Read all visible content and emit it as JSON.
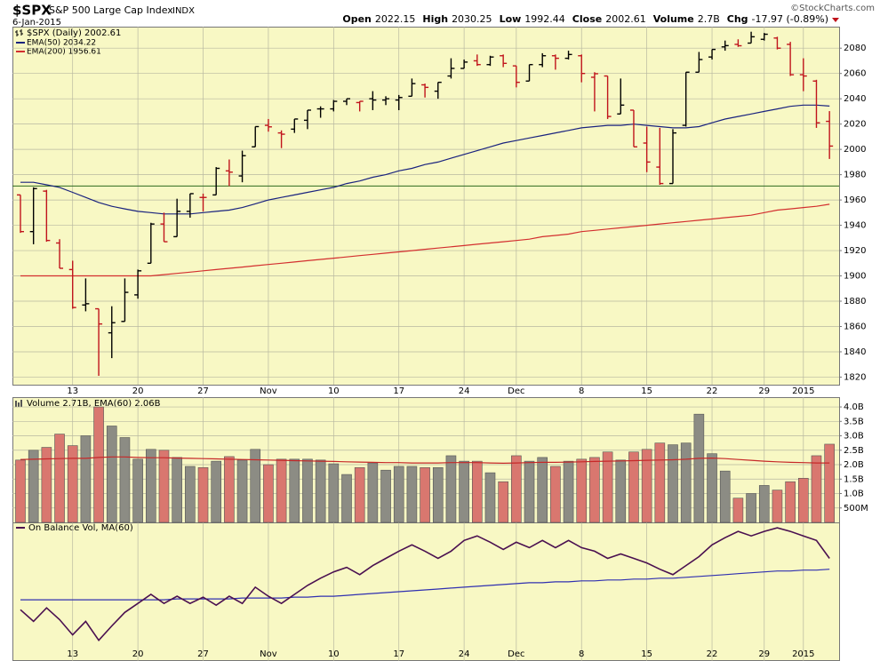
{
  "chart_data": [
    {
      "type": "ohlc",
      "title": "$SPX",
      "subtitle": "S&P 500 Large Cap Index",
      "exchange": "INDX",
      "date": "6-Jan-2015",
      "copyright": "©StockCharts.com",
      "quote": [
        {
          "label": "Open",
          "value": "2022.15"
        },
        {
          "label": "High",
          "value": "2030.25"
        },
        {
          "label": "Low",
          "value": "1992.44"
        },
        {
          "label": "Close",
          "value": "2002.61"
        },
        {
          "label": "Volume",
          "value": "2.7B"
        },
        {
          "label": "Chg",
          "value": "-17.97 (-0.89%)"
        }
      ],
      "name": "$SPX (Daily) 2002.61",
      "categories": [
        null,
        null,
        null,
        null,
        "13",
        null,
        null,
        null,
        null,
        "20",
        null,
        null,
        null,
        null,
        "27",
        null,
        null,
        null,
        null,
        "Nov",
        null,
        null,
        null,
        null,
        "10",
        null,
        null,
        null,
        null,
        "17",
        null,
        null,
        null,
        null,
        "24",
        null,
        null,
        null,
        "Dec",
        null,
        null,
        null,
        null,
        "8",
        null,
        null,
        null,
        null,
        "15",
        null,
        null,
        null,
        null,
        "22",
        null,
        null,
        null,
        "29",
        null,
        null,
        "2015",
        null,
        null
      ],
      "open": [
        1964,
        1935,
        1967,
        1926,
        1905,
        1877,
        1874,
        1855,
        1864,
        1885,
        1910,
        1941,
        1931,
        1951,
        1962,
        1964,
        1983,
        1979,
        2002,
        2019,
        2013,
        2016,
        2023,
        2032,
        2032,
        2038,
        2037,
        2040,
        2039,
        2039,
        2042,
        2051,
        2046,
        2058,
        2064,
        2070,
        2067,
        2074,
        2066,
        2054,
        2067,
        2074,
        2072,
        2074,
        2057,
        2058,
        2028,
        2031,
        2005,
        1986,
        1973,
        2019,
        2061,
        2073,
        2081,
        2083,
        2084,
        2087,
        2088,
        2083,
        2059,
        2054,
        2022.15
      ],
      "high": [
        1964,
        1970,
        1968,
        1929,
        1912,
        1898,
        1874,
        1876,
        1898,
        1905,
        1942,
        1950,
        1961,
        1965,
        1965,
        1986,
        1992,
        1999,
        2018,
        2024,
        2015,
        2024,
        2031,
        2034,
        2039,
        2040,
        2038,
        2046,
        2042,
        2043,
        2056,
        2052,
        2053,
        2072,
        2071,
        2075,
        2074,
        2075,
        2066,
        2067,
        2076,
        2075,
        2078,
        2075,
        2061,
        2058,
        2056,
        2031,
        2018,
        2017,
        2016,
        2061,
        2077,
        2079,
        2086,
        2087,
        2093,
        2092,
        2089,
        2085,
        2072,
        2055,
        2030.25
      ],
      "low": [
        1934,
        1925,
        1927,
        1906,
        1874,
        1872,
        1821,
        1835,
        1864,
        1882,
        1910,
        1927,
        1931,
        1946,
        1951,
        1964,
        1971,
        1974,
        2002,
        2014,
        2001,
        2013,
        2016,
        2025,
        2030,
        2035,
        2030,
        2031,
        2035,
        2031,
        2042,
        2041,
        2040,
        2056,
        2064,
        2066,
        2066,
        2065,
        2049,
        2054,
        2065,
        2063,
        2071,
        2053,
        2030,
        2024,
        2028,
        2002,
        1982,
        1972,
        1973,
        2018,
        2061,
        2071,
        2078,
        2081,
        2084,
        2086,
        2079,
        2058,
        2046,
        2017,
        1992.44
      ],
      "close": [
        1935,
        1969,
        1928,
        1906,
        1875,
        1878,
        1862,
        1863,
        1887,
        1904,
        1941,
        1927,
        1951,
        1965,
        1962,
        1985,
        1982,
        1995,
        2018,
        2017.8,
        2012,
        2024,
        2031,
        2032,
        2038,
        2040,
        2038,
        2039,
        2040,
        2041,
        2052,
        2049,
        2053,
        2064,
        2069,
        2067,
        2073,
        2068,
        2053,
        2067,
        2074,
        2072,
        2075,
        2060,
        2059.8,
        2026,
        2035,
        2002,
        1990,
        1973,
        2013,
        2061,
        2071,
        2079,
        2082,
        2081.9,
        2089,
        2091,
        2080,
        2059,
        2058,
        2021,
        2002.61
      ],
      "up_color": "#000000",
      "down_color": "#c0141c",
      "lines": [
        {
          "name": "EMA(50) 2034.22",
          "color": "#1a237e",
          "values": [
            1974,
            1974,
            1972,
            1970,
            1966,
            1962,
            1958,
            1955,
            1953,
            1951,
            1950,
            1949,
            1949,
            1949,
            1950,
            1951,
            1952,
            1954,
            1957,
            1960,
            1962,
            1964,
            1966,
            1968,
            1970,
            1973,
            1975,
            1978,
            1980,
            1983,
            1985,
            1988,
            1990,
            1993,
            1996,
            1999,
            2002,
            2005,
            2007,
            2009,
            2011,
            2013,
            2015,
            2017,
            2018,
            2019,
            2019,
            2020,
            2019,
            2018,
            2017,
            2017,
            2018,
            2021,
            2024,
            2026,
            2028,
            2030,
            2032,
            2034,
            2035,
            2035,
            2034.22
          ]
        },
        {
          "name": "EMA(200) 1956.61",
          "color": "#d32f2f",
          "values": [
            1900,
            1900,
            1900,
            1900,
            1900,
            1900,
            1900,
            1900,
            1900,
            1900,
            1900,
            1901,
            1902,
            1903,
            1904,
            1905,
            1906,
            1907,
            1908,
            1909,
            1910,
            1911,
            1912,
            1913,
            1914,
            1915,
            1916,
            1917,
            1918,
            1919,
            1920,
            1921,
            1922,
            1923,
            1924,
            1925,
            1926,
            1927,
            1928,
            1929,
            1931,
            1932,
            1933,
            1935,
            1936,
            1937,
            1938,
            1939,
            1940,
            1941,
            1942,
            1943,
            1944,
            1945,
            1946,
            1947,
            1948,
            1950,
            1952,
            1953,
            1954,
            1955,
            1956.61
          ]
        }
      ],
      "hline": {
        "value": 1971,
        "color": "#2e6b1e"
      },
      "ylim": [
        1814,
        2097
      ],
      "yticks": [
        1820,
        1840,
        1860,
        1880,
        1900,
        1920,
        1940,
        1960,
        1980,
        2000,
        2020,
        2040,
        2060,
        2080
      ],
      "grid": true
    },
    {
      "type": "bar",
      "label": "Volume 2.71B, EMA(60) 2.06B",
      "values": [
        2.16,
        2.5,
        2.6,
        3.06,
        2.66,
        3.0,
        4.0,
        3.34,
        2.94,
        2.19,
        2.53,
        2.5,
        2.25,
        1.94,
        1.9,
        2.12,
        2.28,
        2.16,
        2.53,
        2.0,
        2.19,
        2.19,
        2.19,
        2.16,
        2.03,
        1.66,
        1.9,
        2.06,
        1.81,
        1.94,
        1.94,
        1.9,
        1.9,
        2.31,
        2.12,
        2.12,
        1.72,
        1.41,
        2.31,
        2.12,
        2.25,
        1.94,
        2.12,
        2.19,
        2.25,
        2.44,
        2.16,
        2.44,
        2.53,
        2.75,
        2.69,
        2.75,
        3.75,
        2.38,
        1.78,
        0.84,
        1.0,
        1.28,
        1.12,
        1.41,
        1.53,
        2.31,
        2.71
      ],
      "up_color": "#8c8c84",
      "down_color": "#d9776f",
      "line": {
        "color": "#c62828",
        "values": [
          2.18,
          2.19,
          2.2,
          2.21,
          2.22,
          2.22,
          2.25,
          2.27,
          2.27,
          2.25,
          2.24,
          2.24,
          2.23,
          2.22,
          2.21,
          2.2,
          2.19,
          2.18,
          2.17,
          2.16,
          2.15,
          2.14,
          2.13,
          2.12,
          2.11,
          2.1,
          2.09,
          2.08,
          2.07,
          2.07,
          2.06,
          2.06,
          2.06,
          2.07,
          2.07,
          2.07,
          2.06,
          2.05,
          2.06,
          2.07,
          2.08,
          2.08,
          2.09,
          2.1,
          2.11,
          2.12,
          2.13,
          2.14,
          2.15,
          2.16,
          2.17,
          2.19,
          2.22,
          2.23,
          2.21,
          2.18,
          2.15,
          2.12,
          2.1,
          2.08,
          2.07,
          2.06,
          2.06
        ]
      },
      "ylim": [
        0,
        4.34
      ],
      "yticks": [
        {
          "value": 0.5,
          "label": "500M"
        },
        {
          "value": 1,
          "label": "1.0B"
        },
        {
          "value": 1.5,
          "label": "1.5B"
        },
        {
          "value": 2,
          "label": "2.0B"
        },
        {
          "value": 2.5,
          "label": "2.5B"
        },
        {
          "value": 3,
          "label": "3.0B"
        },
        {
          "value": 3.5,
          "label": "3.5B"
        },
        {
          "value": 4,
          "label": "4.0B"
        }
      ],
      "grid": true
    },
    {
      "type": "line",
      "label": "On Balance Vol, MA(60)",
      "categories": [
        null,
        null,
        null,
        null,
        "13",
        null,
        null,
        null,
        null,
        "20",
        null,
        null,
        null,
        null,
        "27",
        null,
        null,
        null,
        null,
        "Nov",
        null,
        null,
        null,
        null,
        "10",
        null,
        null,
        null,
        null,
        "17",
        null,
        null,
        null,
        null,
        "24",
        null,
        null,
        null,
        "Dec",
        null,
        null,
        null,
        null,
        "8",
        null,
        null,
        null,
        null,
        "15",
        null,
        null,
        null,
        null,
        "22",
        null,
        null,
        null,
        "29",
        null,
        null,
        "2015",
        null,
        null
      ],
      "values": [
        57,
        44,
        59,
        46,
        29,
        44,
        23,
        39,
        54,
        64,
        74,
        64,
        72,
        64,
        71,
        62,
        72,
        64,
        82,
        72,
        64,
        74,
        84,
        92,
        99,
        104,
        96,
        106,
        114,
        122,
        129,
        122,
        114,
        122,
        134,
        139,
        132,
        124,
        132,
        126,
        134,
        126,
        134,
        126,
        122,
        114,
        119,
        114,
        109,
        102,
        96,
        106,
        116,
        129,
        137,
        144,
        139,
        144,
        148,
        144,
        139,
        134,
        114
      ],
      "color": "#4a1050",
      "ma": {
        "color": "#3030b0",
        "values": [
          68,
          68,
          68,
          68,
          68,
          68,
          68,
          68,
          68,
          68,
          68,
          68,
          69,
          69,
          69,
          69,
          69,
          70,
          70,
          70,
          70,
          71,
          71,
          72,
          72,
          73,
          74,
          75,
          76,
          77,
          78,
          79,
          80,
          81,
          82,
          83,
          84,
          85,
          86,
          87,
          87,
          88,
          88,
          89,
          89,
          90,
          90,
          91,
          91,
          92,
          92,
          93,
          94,
          95,
          96,
          97,
          98,
          99,
          100,
          100,
          101,
          101,
          102
        ]
      },
      "ylim": [
        0,
        154
      ]
    }
  ]
}
